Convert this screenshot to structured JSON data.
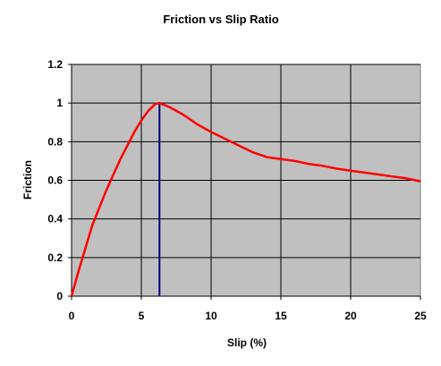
{
  "chart_data": {
    "type": "line",
    "title": "Friction vs Slip Ratio",
    "xlabel": "Slip (%)",
    "ylabel": "Friction",
    "xlim": [
      0,
      25
    ],
    "ylim": [
      0,
      1.2
    ],
    "x_ticks": [
      "0",
      "5",
      "10",
      "15",
      "20",
      "25"
    ],
    "y_ticks": [
      "0",
      "0.2",
      "0.4",
      "0.6",
      "0.8",
      "1",
      "1.2"
    ],
    "grid": true,
    "plot_background": "#c0c0c0",
    "series": [
      {
        "color": "#ff0000",
        "x": [
          0,
          0.5,
          1,
          1.5,
          2,
          2.5,
          3,
          3.5,
          4,
          4.5,
          5,
          5.5,
          6,
          6.3,
          7,
          8,
          9,
          10,
          11,
          12,
          13,
          14,
          15,
          16,
          17,
          18,
          19,
          20,
          21,
          22,
          23,
          24,
          25
        ],
        "y": [
          0,
          0.13,
          0.25,
          0.37,
          0.46,
          0.55,
          0.63,
          0.71,
          0.78,
          0.85,
          0.91,
          0.96,
          0.995,
          1.0,
          0.98,
          0.94,
          0.89,
          0.85,
          0.815,
          0.78,
          0.745,
          0.72,
          0.71,
          0.7,
          0.685,
          0.675,
          0.66,
          0.65,
          0.64,
          0.63,
          0.62,
          0.61,
          0.595
        ]
      }
    ],
    "vertical_marker": {
      "x": 6.3,
      "color": "#000080"
    }
  }
}
